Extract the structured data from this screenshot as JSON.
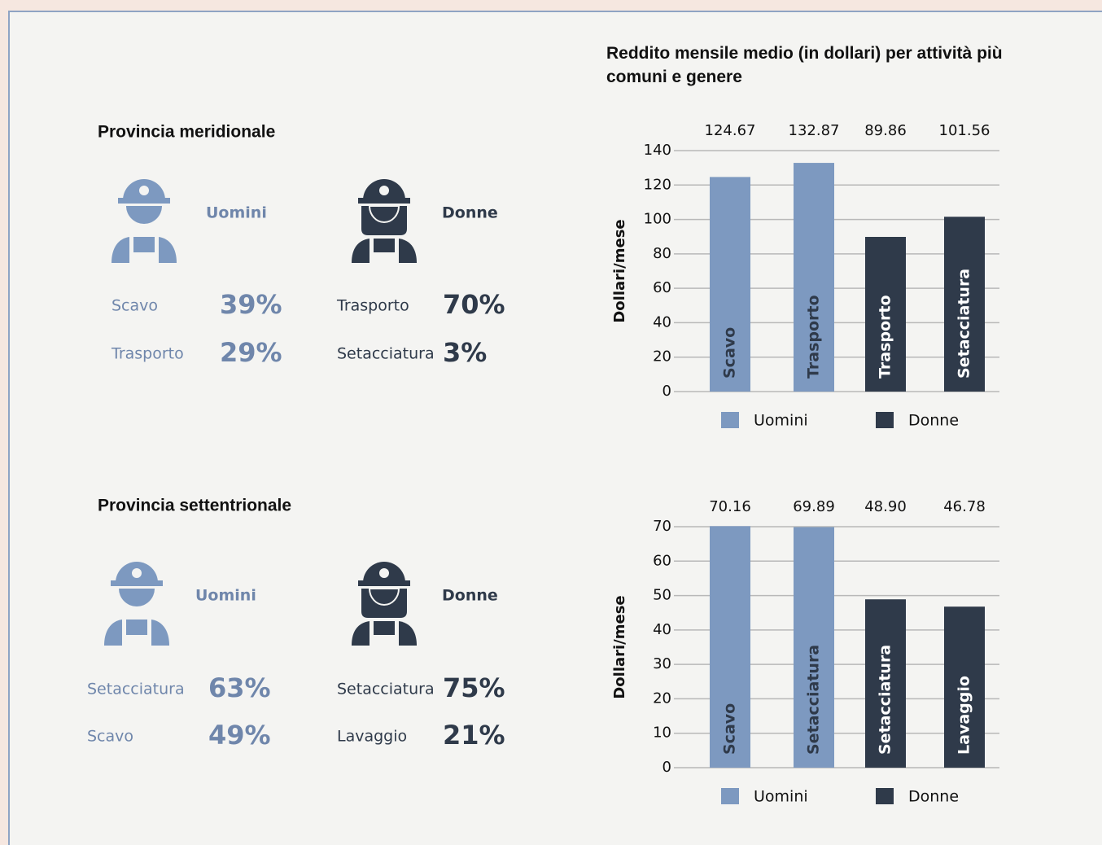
{
  "panels": [
    {
      "title": "Provincia meridionale",
      "men": {
        "label": "Uomini",
        "jobs": [
          {
            "name": "Scavo",
            "share": "39%"
          },
          {
            "name": "Trasporto",
            "share": "29%"
          }
        ]
      },
      "women": {
        "label": "Donne",
        "jobs": [
          {
            "name": "Trasporto",
            "share": "70%"
          },
          {
            "name": "Setacciatura",
            "share": "3%"
          }
        ]
      }
    },
    {
      "title": "Provincia settentrionale",
      "men": {
        "label": "Uomini",
        "jobs": [
          {
            "name": "Setacciatura",
            "share": "63%"
          },
          {
            "name": "Scavo",
            "share": "49%"
          }
        ]
      },
      "women": {
        "label": "Donne",
        "jobs": [
          {
            "name": "Setacciatura",
            "share": "75%"
          },
          {
            "name": "Lavaggio",
            "share": "21%"
          }
        ]
      }
    }
  ],
  "chart_data": [
    {
      "type": "bar",
      "title": "Reddito mensile medio (in dollari) per attività più comuni e genere",
      "y_label": "Dollari/mese",
      "categories": [
        "Scavo",
        "Trasporto",
        "Trasporto",
        "Setacciatura"
      ],
      "series": [
        {
          "name": "Uomini",
          "color": "#7d99c0",
          "values": [
            124.67,
            132.87,
            null,
            null
          ]
        },
        {
          "name": "Donne",
          "color": "#2f3a4a",
          "values": [
            null,
            null,
            89.86,
            101.56
          ]
        }
      ],
      "ylim": [
        0,
        140
      ],
      "yticks": [
        0,
        20,
        40,
        60,
        80,
        100,
        120,
        140
      ],
      "grid": true
    },
    {
      "type": "bar",
      "y_label": "Dollari/mese",
      "categories": [
        "Scavo",
        "Setacciatura",
        "Setacciatura",
        "Lavaggio"
      ],
      "series": [
        {
          "name": "Uomini",
          "color": "#7d99c0",
          "values": [
            70.16,
            69.89,
            null,
            null
          ],
          "value_labels": [
            "70.16",
            "69.89",
            null,
            null
          ]
        },
        {
          "name": "Donne",
          "color": "#2f3a4a",
          "values": [
            null,
            null,
            48.9,
            46.78
          ],
          "value_labels": [
            null,
            null,
            "48.90",
            "46.78"
          ]
        }
      ],
      "ylim": [
        0,
        70
      ],
      "yticks": [
        0,
        10,
        20,
        30,
        40,
        50,
        60,
        70
      ],
      "grid": true
    }
  ]
}
